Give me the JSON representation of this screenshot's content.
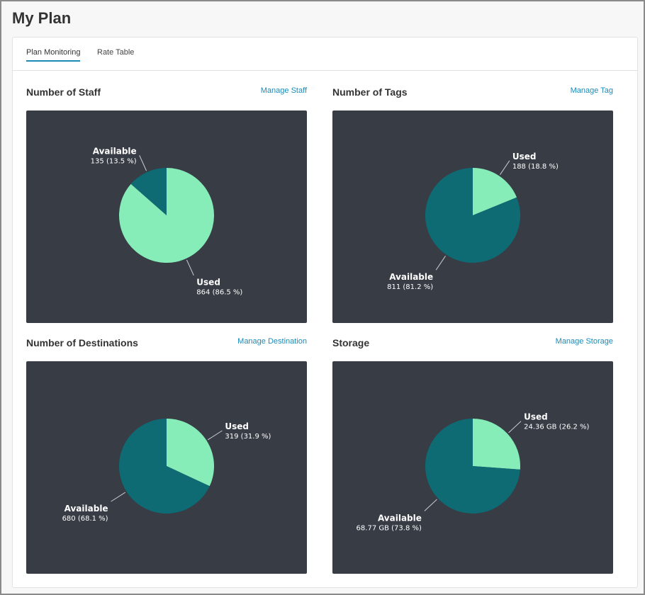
{
  "page": {
    "title": "My Plan"
  },
  "tabs": [
    {
      "label": "Plan Monitoring",
      "active": true
    },
    {
      "label": "Rate Table",
      "active": false
    }
  ],
  "colors": {
    "used": "#86edb9",
    "available": "#0e6b74",
    "panel_bg": "#373c45",
    "link": "#1a8bb8"
  },
  "panels": [
    {
      "title": "Number of Staff",
      "link": "Manage Staff"
    },
    {
      "title": "Number of Tags",
      "link": "Manage Tag"
    },
    {
      "title": "Number of Destinations",
      "link": "Manage Destination"
    },
    {
      "title": "Storage",
      "link": "Manage Storage"
    }
  ],
  "chart_data": [
    {
      "type": "pie",
      "categories": [
        "Used",
        "Available"
      ],
      "values": [
        864,
        135
      ],
      "labels": [
        "864 (86.5 %)",
        "135 (13.5 %)"
      ]
    },
    {
      "type": "pie",
      "categories": [
        "Used",
        "Available"
      ],
      "values": [
        188,
        811
      ],
      "labels": [
        "188 (18.8 %)",
        "811 (81.2 %)"
      ]
    },
    {
      "type": "pie",
      "categories": [
        "Used",
        "Available"
      ],
      "values": [
        319,
        680
      ],
      "labels": [
        "319 (31.9 %)",
        "680 (68.1 %)"
      ]
    },
    {
      "type": "pie",
      "categories": [
        "Used",
        "Available"
      ],
      "values": [
        24.36,
        68.77
      ],
      "labels": [
        "24.36 GB (26.2 %)",
        "68.77 GB (73.8 %)"
      ],
      "unit": "GB"
    }
  ]
}
